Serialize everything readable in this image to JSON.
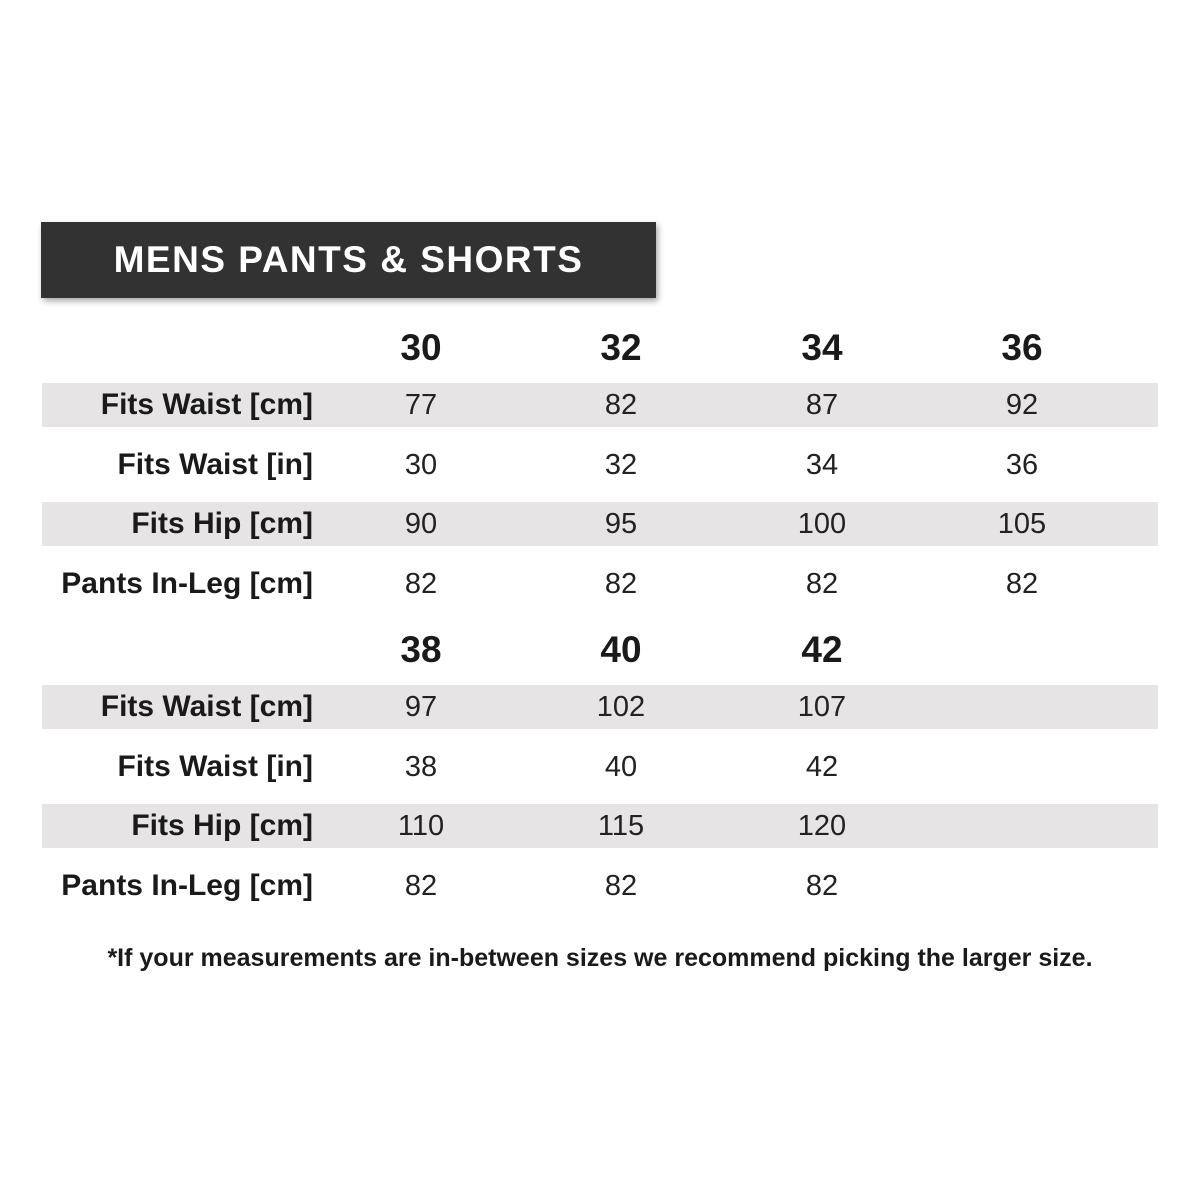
{
  "title": "MENS PANTS & SHORTS",
  "row_labels": [
    "Fits Waist [cm]",
    "Fits Waist [in]",
    "Fits Hip [cm]",
    "Pants In-Leg [cm]"
  ],
  "tables": [
    {
      "sizes": [
        "30",
        "32",
        "34",
        "36"
      ],
      "rows": [
        [
          "77",
          "82",
          "87",
          "92"
        ],
        [
          "30",
          "32",
          "34",
          "36"
        ],
        [
          "90",
          "95",
          "100",
          "105"
        ],
        [
          "82",
          "82",
          "82",
          "82"
        ]
      ]
    },
    {
      "sizes": [
        "38",
        "40",
        "42"
      ],
      "rows": [
        [
          "97",
          "102",
          "107"
        ],
        [
          "38",
          "40",
          "42"
        ],
        [
          "110",
          "115",
          "120"
        ],
        [
          "82",
          "82",
          "82"
        ]
      ]
    }
  ],
  "footnote": "*If your measurements are in-between sizes we recommend picking the larger size.",
  "colors": {
    "banner": "#323232",
    "row_shade": "#e6e4e5"
  }
}
